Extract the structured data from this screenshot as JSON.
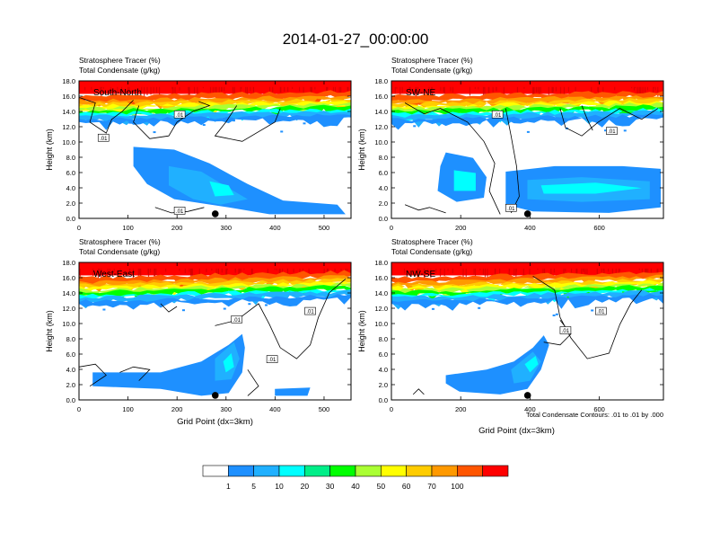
{
  "title": "2014-01-27_00:00:00",
  "panel_header_line1": "Stratosphere Tracer   (%)",
  "panel_header_line2": "Total Condensate   (g/kg)",
  "ylabel": "Height (km)",
  "xlabel": "Grid Point (dx=3km)",
  "contour_note": "Total Condensate Contours: .01 to .01 by .000",
  "colorbar": {
    "colors": [
      "#ffffff",
      "#1e90ff",
      "#20b0ff",
      "#00ffff",
      "#00ee88",
      "#00ff00",
      "#aaff33",
      "#ffff00",
      "#ffcc00",
      "#ff9900",
      "#ff5500",
      "#ff0000"
    ],
    "labels": [
      "1",
      "5",
      "10",
      "20",
      "30",
      "40",
      "50",
      "60",
      "70",
      "100"
    ]
  },
  "chart_data": [
    {
      "type": "heatmap",
      "name": "South-North",
      "header": [
        "Stratosphere Tracer   (%)",
        "Total Condensate   (g/kg)"
      ],
      "ylim": [
        0,
        18
      ],
      "yticks": [
        "0.0",
        "2.0",
        "4.0",
        "6.0",
        "8.0",
        "10.0",
        "12.0",
        "14.0",
        "16.0",
        "18.0"
      ],
      "xlim": [
        0,
        555
      ],
      "xticks": [
        0,
        100,
        200,
        300,
        400,
        500
      ],
      "contour_labels": [
        ".01",
        ".01",
        ".01"
      ],
      "marker": {
        "x": 278,
        "y": 0.6
      }
    },
    {
      "type": "heatmap",
      "name": "SW-NE",
      "header": [
        "Stratosphere Tracer   (%)",
        "Total Condensate   (g/kg)"
      ],
      "ylim": [
        0,
        18
      ],
      "yticks": [
        "0.0",
        "2.0",
        "4.0",
        "6.0",
        "8.0",
        "10.0",
        "12.0",
        "14.0",
        "16.0",
        "18.0"
      ],
      "xlim": [
        0,
        785
      ],
      "xticks": [
        0,
        200,
        400,
        600
      ],
      "contour_labels": [
        ".01",
        ".01",
        ".01"
      ],
      "marker": {
        "x": 393,
        "y": 0.6
      }
    },
    {
      "type": "heatmap",
      "name": "West-East",
      "header": [
        "Stratosphere Tracer   (%)",
        "Total Condensate   (g/kg)"
      ],
      "ylim": [
        0,
        18
      ],
      "yticks": [
        "0.0",
        "2.0",
        "4.0",
        "6.0",
        "8.0",
        "10.0",
        "12.0",
        "14.0",
        "16.0",
        "18.0"
      ],
      "xlim": [
        0,
        555
      ],
      "xticks": [
        0,
        100,
        200,
        300,
        400,
        500
      ],
      "contour_labels": [
        ".01",
        ".01",
        ".01"
      ],
      "marker": {
        "x": 278,
        "y": 0.6
      }
    },
    {
      "type": "heatmap",
      "name": "NW-SE",
      "header": [
        "Stratosphere Tracer   (%)",
        "Total Condensate   (g/kg)"
      ],
      "ylim": [
        0,
        18
      ],
      "yticks": [
        "0.0",
        "2.0",
        "4.0",
        "6.0",
        "8.0",
        "10.0",
        "12.0",
        "14.0",
        "16.0",
        "18.0"
      ],
      "xlim": [
        0,
        785
      ],
      "xticks": [
        0,
        200,
        400,
        600
      ],
      "contour_labels": [
        ".01",
        ".01"
      ],
      "marker": {
        "x": 393,
        "y": 0.6
      }
    }
  ]
}
